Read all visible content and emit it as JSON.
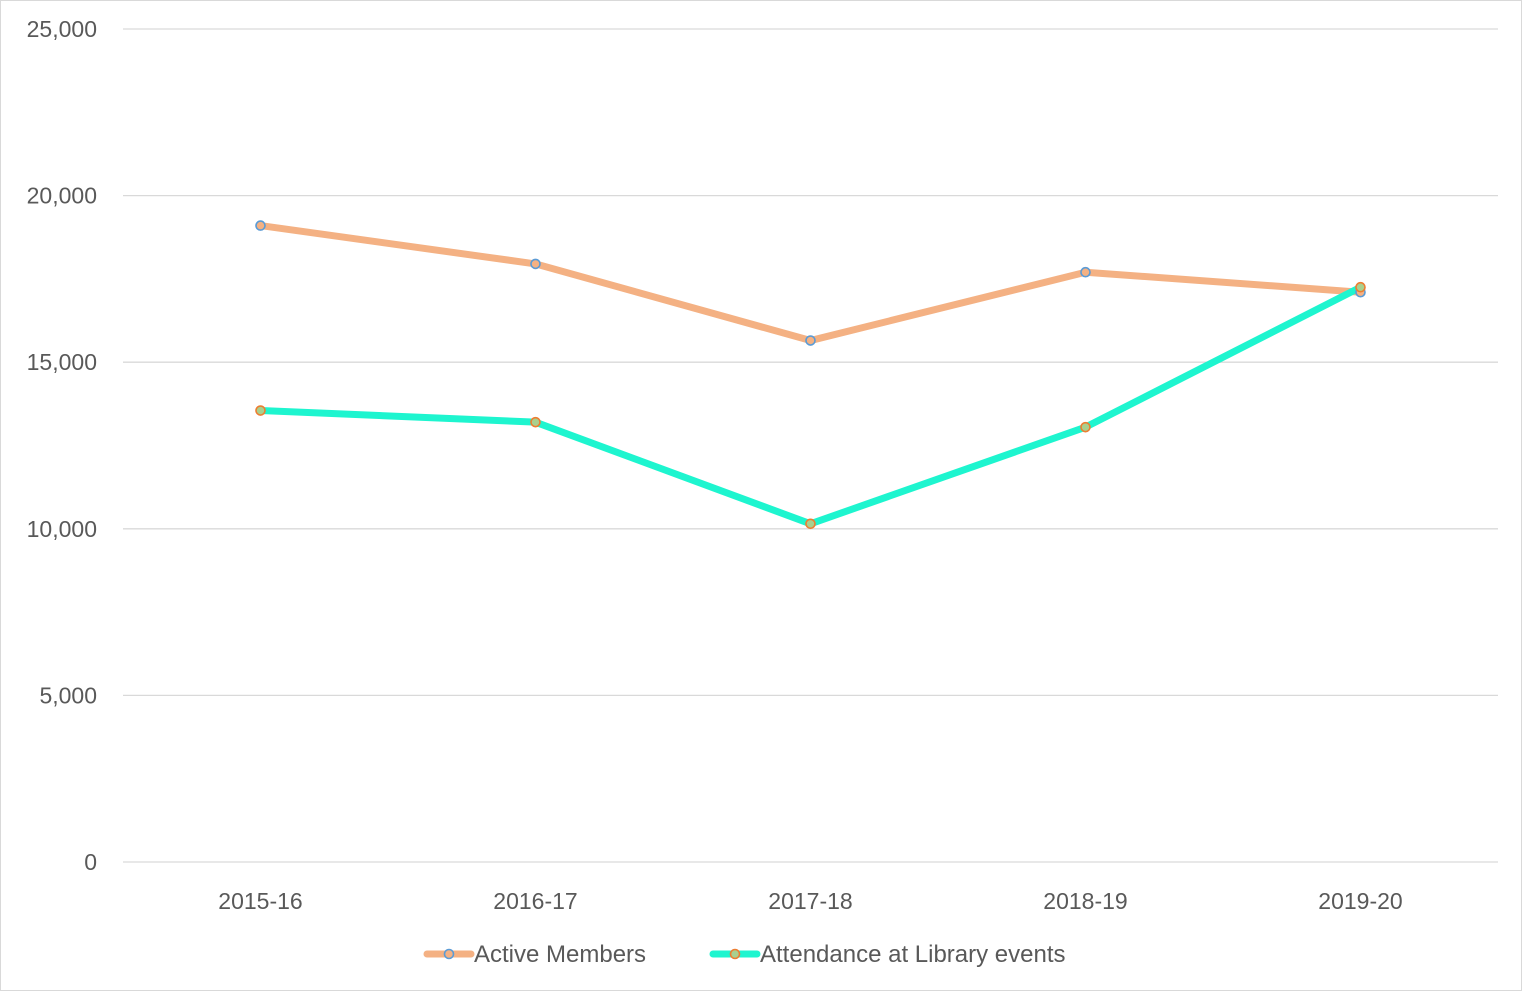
{
  "chart_data": {
    "type": "line",
    "title": "",
    "xlabel": "",
    "ylabel": "",
    "categories": [
      "2015-16",
      "2016-17",
      "2017-18",
      "2018-19",
      "2019-20"
    ],
    "ylim": [
      0,
      25000
    ],
    "yticks": [
      0,
      5000,
      10000,
      15000,
      20000,
      25000
    ],
    "ytick_labels": [
      "0",
      "5,000",
      "10,000",
      "15,000",
      "20,000",
      "25,000"
    ],
    "grid": true,
    "legend_position": "bottom",
    "series": [
      {
        "name": "Active Members",
        "values": [
          19100,
          17950,
          15650,
          17700,
          17100
        ],
        "line_color": "#f4b183",
        "marker_stroke": "#5b9bd5",
        "marker_fill": "#f4b183"
      },
      {
        "name": "Attendance at Library events",
        "values": [
          13550,
          13200,
          10150,
          13050,
          17250
        ],
        "line_color": "#1ef5cf",
        "marker_stroke": "#ed7d31",
        "marker_fill": "#a9d08e"
      }
    ]
  }
}
